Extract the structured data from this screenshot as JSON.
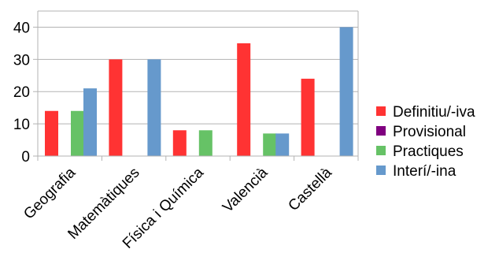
{
  "chart_data": {
    "type": "bar",
    "categories": [
      "Geografia",
      "Matemàtiques",
      "Física i Química",
      "Valencià",
      "Castellà"
    ],
    "series": [
      {
        "name": "Definitiu/-iva",
        "color": "#ff3333",
        "values": [
          14,
          30,
          8,
          35,
          24
        ]
      },
      {
        "name": "Provisional",
        "color": "#800080",
        "values": [
          0,
          0,
          0,
          0,
          0
        ]
      },
      {
        "name": "Practiques",
        "color": "#66c266",
        "values": [
          14,
          0,
          8,
          7,
          0
        ]
      },
      {
        "name": "Interí/-ina",
        "color": "#6699cc",
        "values": [
          21,
          30,
          0,
          7,
          40
        ]
      }
    ],
    "ylim": [
      0,
      45
    ],
    "yticks": [
      0,
      10,
      20,
      30,
      40
    ],
    "grid": true,
    "legend": "right"
  }
}
